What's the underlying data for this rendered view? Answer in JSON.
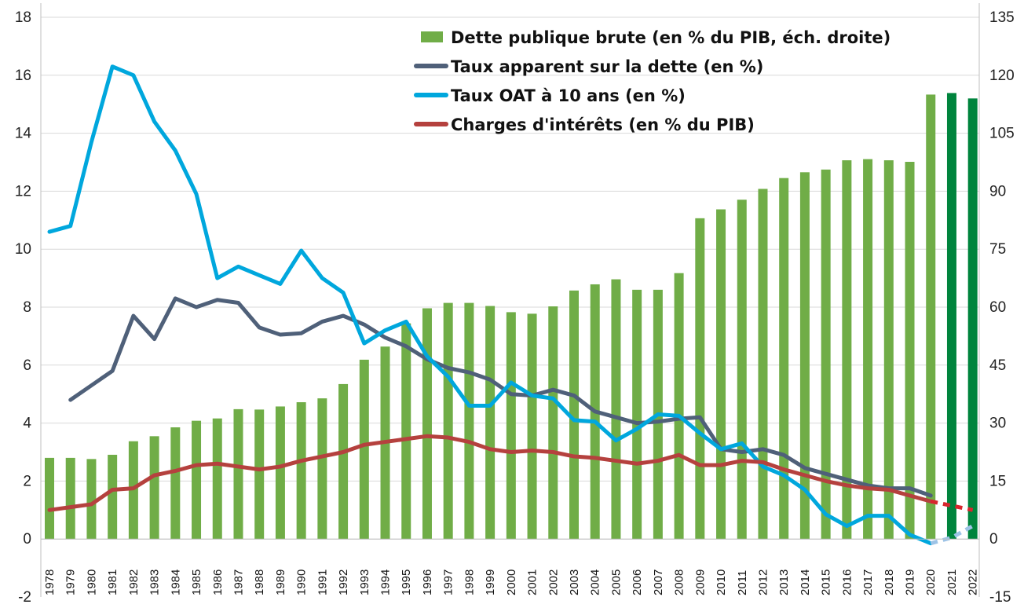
{
  "chart_data": {
    "type": "bar+line",
    "title": "",
    "xlabel": "",
    "ylabel": "",
    "y_left_lim": [
      -2,
      18
    ],
    "y_left_ticks": [
      "-2",
      "0",
      "2",
      "4",
      "6",
      "8",
      "10",
      "12",
      "14",
      "16",
      "18"
    ],
    "y_right_lim": [
      -15,
      135
    ],
    "y_right_ticks": [
      "-15",
      "0",
      "15",
      "30",
      "45",
      "60",
      "75",
      "90",
      "105",
      "120",
      "135"
    ],
    "grid": "horizontal",
    "legend_position": "top-right",
    "categories": [
      "1978",
      "1979",
      "1980",
      "1981",
      "1982",
      "1983",
      "1984",
      "1985",
      "1986",
      "1987",
      "1988",
      "1989",
      "1990",
      "1991",
      "1992",
      "1993",
      "1994",
      "1995",
      "1996",
      "1997",
      "1998",
      "1999",
      "2000",
      "2001",
      "2002",
      "2003",
      "2004",
      "2005",
      "2006",
      "2007",
      "2008",
      "2009",
      "2010",
      "2011",
      "2012",
      "2013",
      "2014",
      "2015",
      "2016",
      "2017",
      "2018",
      "2019",
      "2020",
      "2021",
      "2022"
    ],
    "series": [
      {
        "name": "Dette publique brute (en % du PIB, éch. droite)",
        "type": "bar",
        "axis": "right",
        "color": "#70AD47",
        "forecast_color": "#00843D",
        "forecast_from": "2021",
        "values": [
          21,
          21,
          20.7,
          21.8,
          25.3,
          26.6,
          28.9,
          30.6,
          31.2,
          33.6,
          33.5,
          34.3,
          35.4,
          36.4,
          40.1,
          46.4,
          49.8,
          55.8,
          59.7,
          61.1,
          61.1,
          60.3,
          58.7,
          58.3,
          60.2,
          64.3,
          65.9,
          67.2,
          64.5,
          64.5,
          68.8,
          83,
          85.3,
          87.8,
          90.6,
          93.4,
          94.9,
          95.6,
          98,
          98.3,
          98,
          97.6,
          115,
          115.4,
          114
        ]
      },
      {
        "name": "Taux apparent sur la dette (en %)",
        "type": "line",
        "axis": "left",
        "color": "#4F6079",
        "values": [
          null,
          4.8,
          5.3,
          5.8,
          7.7,
          6.9,
          8.3,
          8,
          8.25,
          8.15,
          7.3,
          7.05,
          7.1,
          7.5,
          7.7,
          7.4,
          6.95,
          6.65,
          6.2,
          5.9,
          5.75,
          5.5,
          5.0,
          4.95,
          5.15,
          4.95,
          4.4,
          4.2,
          4.0,
          4.05,
          4.15,
          4.2,
          3.1,
          3.0,
          3.1,
          2.9,
          2.45,
          2.25,
          2.05,
          1.85,
          1.75,
          1.75,
          1.5,
          null,
          null
        ]
      },
      {
        "name": "Taux OAT à 10 ans (en %)",
        "type": "line",
        "axis": "left",
        "color": "#00A7DD",
        "forecast_color": "#9DC3E6",
        "forecast_from": "2020",
        "values": [
          10.6,
          10.8,
          13.7,
          16.3,
          16,
          14.4,
          13.4,
          11.9,
          9.0,
          9.4,
          9.1,
          8.8,
          9.95,
          9.0,
          8.5,
          6.75,
          7.2,
          7.5,
          6.3,
          5.6,
          4.6,
          4.6,
          5.4,
          4.95,
          4.85,
          4.1,
          4.05,
          3.4,
          3.8,
          4.3,
          4.25,
          3.65,
          3.1,
          3.3,
          2.5,
          2.2,
          1.7,
          0.85,
          0.45,
          0.8,
          0.8,
          0.15,
          -0.15,
          0.05,
          0.45
        ]
      },
      {
        "name": "Charges d'intérêts (en % du PIB)",
        "type": "line",
        "axis": "left",
        "color": "#B5413E",
        "forecast_color": "#D8262E",
        "forecast_from": "2020",
        "values": [
          1.0,
          1.1,
          1.2,
          1.7,
          1.75,
          2.2,
          2.35,
          2.55,
          2.6,
          2.5,
          2.4,
          2.5,
          2.7,
          2.85,
          3.0,
          3.25,
          3.35,
          3.45,
          3.55,
          3.5,
          3.35,
          3.1,
          3.0,
          3.05,
          3.0,
          2.85,
          2.8,
          2.7,
          2.6,
          2.7,
          2.9,
          2.55,
          2.55,
          2.7,
          2.65,
          2.4,
          2.2,
          2.0,
          1.85,
          1.75,
          1.7,
          1.5,
          1.3,
          1.15,
          1.0
        ]
      }
    ]
  }
}
